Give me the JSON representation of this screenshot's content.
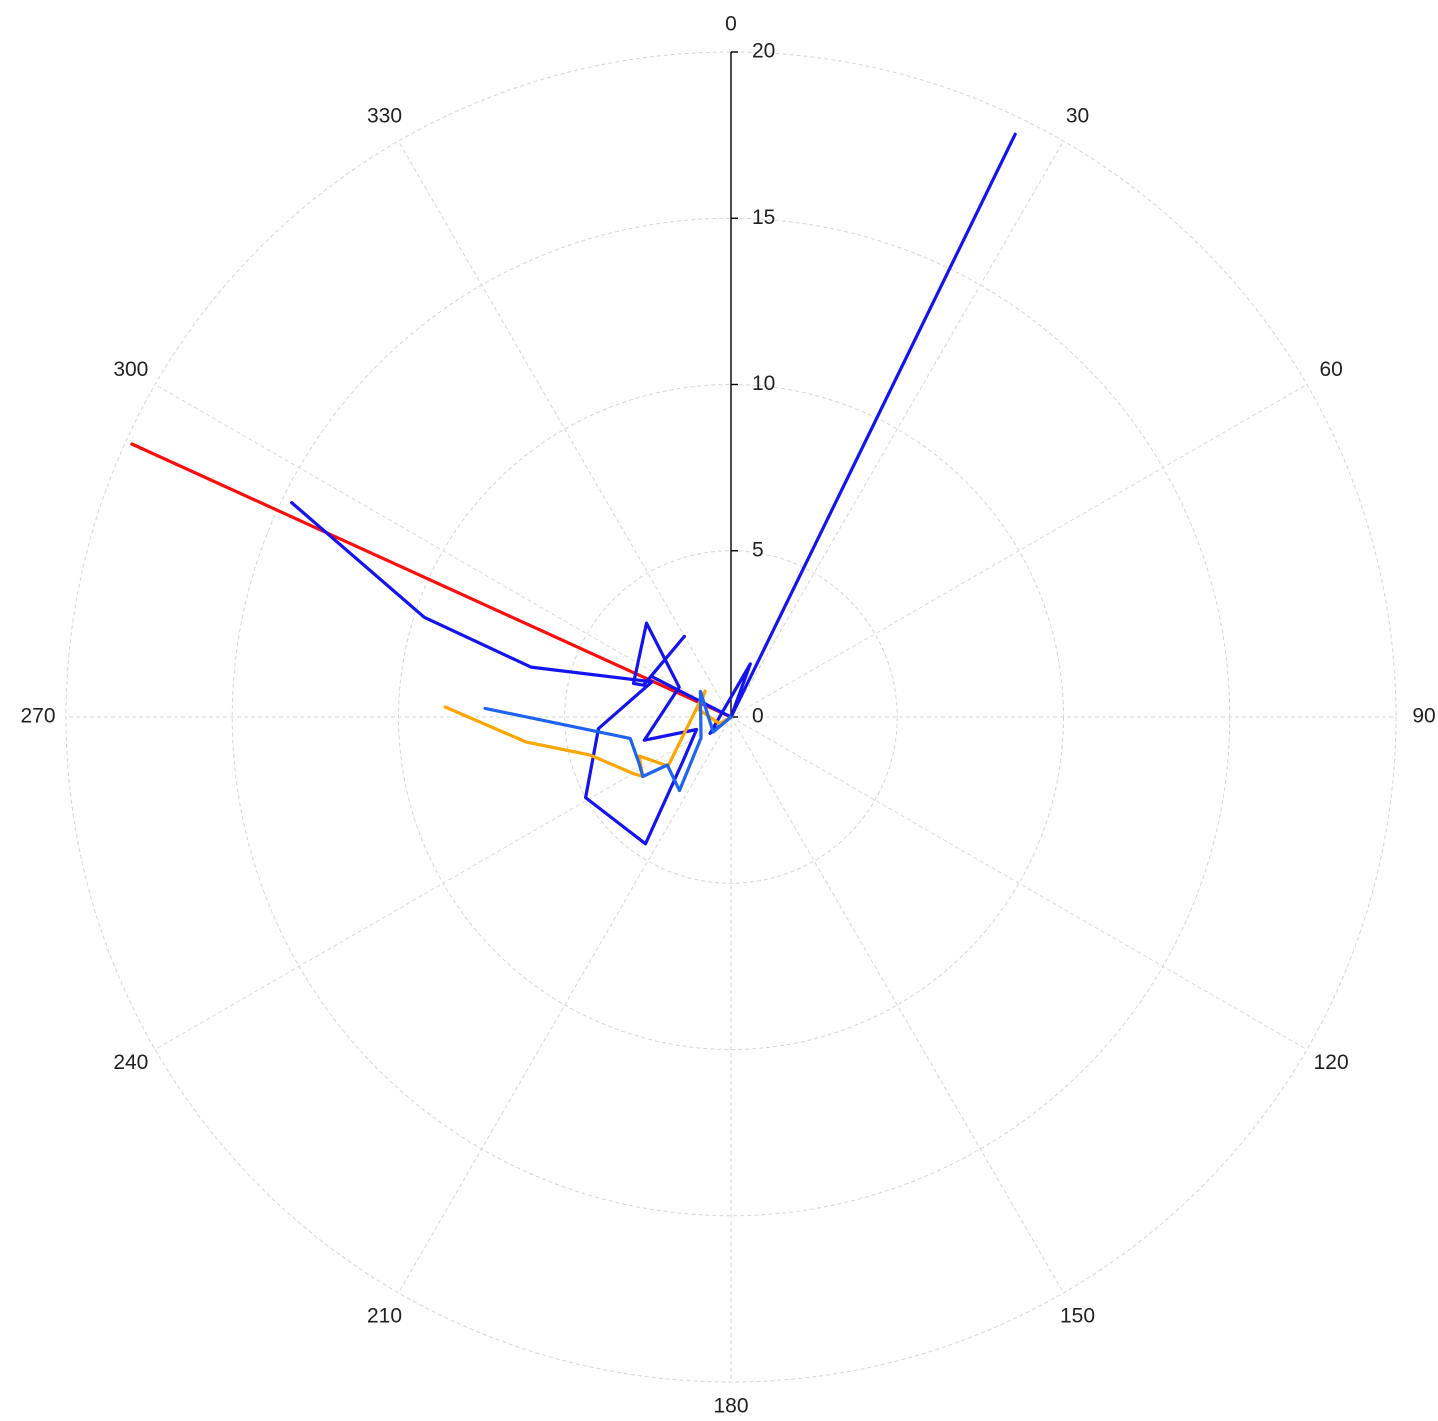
{
  "chart_data": {
    "type": "line",
    "subtype": "polar",
    "angle_direction": "clockwise",
    "zero_angle": "top",
    "angle_ticks": [
      "0",
      "30",
      "60",
      "90",
      "120",
      "150",
      "180",
      "210",
      "240",
      "270",
      "300",
      "330"
    ],
    "radial_ticks": [
      "0",
      "5",
      "10",
      "15",
      "20"
    ],
    "rlim": [
      0,
      20
    ],
    "grid": true,
    "legend": "none",
    "series": [
      {
        "color": "#1414f0",
        "points": [
          {
            "theta": 0,
            "r": 0
          },
          {
            "theta": 26,
            "r": 19.5
          }
        ]
      },
      {
        "color": "#ff0d0d",
        "points": [
          {
            "theta": 0,
            "r": 0
          },
          {
            "theta": 294.5,
            "r": 19.8
          }
        ]
      },
      {
        "color": "#1414f0",
        "points": [
          {
            "theta": 0,
            "r": 0
          },
          {
            "theta": 232,
            "r": 0.8
          },
          {
            "theta": 20,
            "r": 1.7
          },
          {
            "theta": 0,
            "r": 0
          },
          {
            "theta": 297,
            "r": 2.7
          },
          {
            "theta": 330,
            "r": 2.8
          },
          {
            "theta": 290,
            "r": 2.8
          },
          {
            "theta": 289,
            "r": 3.1
          },
          {
            "theta": 318,
            "r": 3.8
          },
          {
            "theta": 300,
            "r": 1.8
          },
          {
            "theta": 255,
            "r": 2.7
          },
          {
            "theta": 250,
            "r": 1.1
          },
          {
            "theta": 227,
            "r": 2.0
          },
          {
            "theta": 214,
            "r": 4.6
          },
          {
            "theta": 241,
            "r": 5.0
          },
          {
            "theta": 265,
            "r": 4.0
          },
          {
            "theta": 294,
            "r": 2.6
          },
          {
            "theta": 284,
            "r": 6.2
          },
          {
            "theta": 288,
            "r": 9.7
          },
          {
            "theta": 296,
            "r": 14.7
          }
        ]
      },
      {
        "color": "#ffa500",
        "points": [
          {
            "theta": 0,
            "r": 0
          },
          {
            "theta": 240,
            "r": 0.4
          },
          {
            "theta": 283,
            "r": 1.0
          },
          {
            "theta": 315,
            "r": 1.1
          },
          {
            "theta": 232,
            "r": 2.4
          },
          {
            "theta": 247,
            "r": 3.0
          },
          {
            "theta": 236,
            "r": 3.2
          },
          {
            "theta": 240,
            "r": 3.4
          },
          {
            "theta": 255,
            "r": 4.4
          },
          {
            "theta": 263,
            "r": 6.2
          },
          {
            "theta": 272,
            "r": 8.6
          }
        ]
      },
      {
        "color": "#1e64f0",
        "points": [
          {
            "theta": 0,
            "r": 0
          },
          {
            "theta": 230,
            "r": 0.7
          },
          {
            "theta": 310,
            "r": 1.2
          },
          {
            "theta": 235,
            "r": 1.1
          },
          {
            "theta": 215,
            "r": 2.7
          },
          {
            "theta": 233,
            "r": 2.4
          },
          {
            "theta": 236,
            "r": 3.2
          },
          {
            "theta": 243,
            "r": 3.1
          },
          {
            "theta": 258,
            "r": 3.1
          },
          {
            "theta": 272,
            "r": 7.4
          }
        ]
      }
    ]
  }
}
